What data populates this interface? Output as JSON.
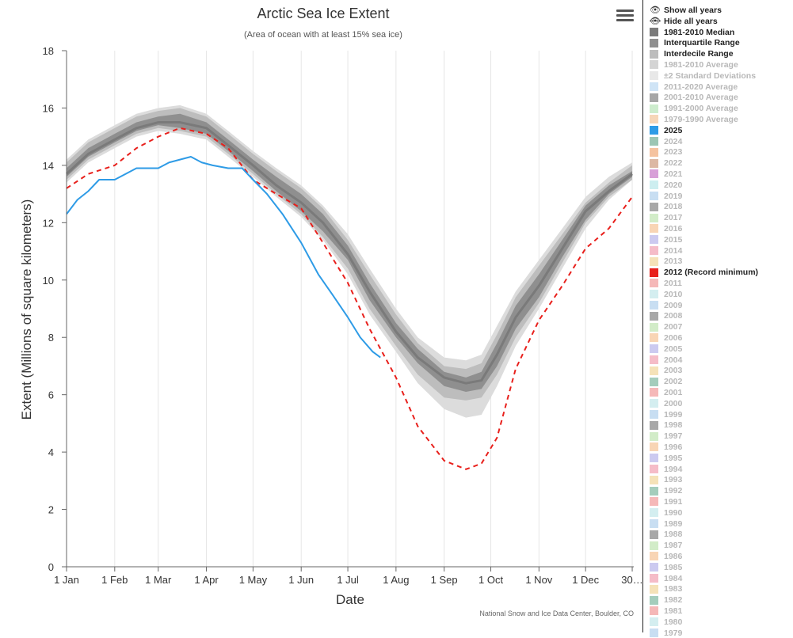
{
  "chart_data": {
    "type": "area",
    "title": "Arctic Sea Ice Extent",
    "subtitle": "(Area of ocean with at least 15% sea ice)",
    "xlabel": "Date",
    "ylabel": "Extent (Millions of square kilometers)",
    "ylim": [
      0,
      18
    ],
    "yticks": [
      0,
      2,
      4,
      6,
      8,
      10,
      12,
      14,
      16,
      18
    ],
    "xlim": [
      1,
      366
    ],
    "xtick_days": [
      1,
      32,
      60,
      91,
      121,
      152,
      182,
      213,
      244,
      274,
      305,
      335,
      365
    ],
    "xtick_labels": [
      "1 Jan",
      "1 Feb",
      "1 Mar",
      "1 Apr",
      "1 May",
      "1 Jun",
      "1 Jul",
      "1 Aug",
      "1 Sep",
      "1 Oct",
      "1 Nov",
      "1 Dec",
      "30…"
    ],
    "grid": "vertical",
    "credit": "National Snow and Ice Data Center, Boulder, CO",
    "x_unit": "day of year",
    "series": [
      {
        "name": "±2 Standard Deviations",
        "kind": "band",
        "color": "#dcdcdc",
        "x": [
          1,
          15,
          32,
          46,
          60,
          74,
          91,
          105,
          121,
          136,
          152,
          166,
          182,
          196,
          213,
          227,
          244,
          258,
          268,
          278,
          290,
          305,
          320,
          335,
          350,
          365
        ],
        "lower": [
          13.4,
          14.1,
          14.6,
          15.0,
          15.2,
          15.1,
          14.9,
          14.3,
          13.6,
          12.9,
          12.2,
          11.4,
          10.2,
          8.8,
          7.5,
          6.4,
          5.5,
          5.2,
          5.3,
          6.3,
          7.7,
          9.0,
          10.4,
          11.8,
          12.8,
          13.5
        ],
        "upper": [
          14.2,
          14.9,
          15.4,
          15.8,
          16.0,
          16.1,
          15.8,
          15.2,
          14.5,
          13.9,
          13.3,
          12.6,
          11.6,
          10.4,
          9.0,
          8.0,
          7.3,
          7.2,
          7.4,
          8.4,
          9.6,
          10.7,
          11.8,
          12.9,
          13.6,
          14.1
        ]
      },
      {
        "name": "Interdecile Range",
        "kind": "band",
        "color": "#bdbdbd",
        "x": [
          1,
          15,
          32,
          46,
          60,
          74,
          91,
          105,
          121,
          136,
          152,
          166,
          182,
          196,
          213,
          227,
          244,
          258,
          268,
          278,
          290,
          305,
          320,
          335,
          350,
          365
        ],
        "lower": [
          13.5,
          14.2,
          14.7,
          15.1,
          15.3,
          15.2,
          15.0,
          14.4,
          13.7,
          13.0,
          12.3,
          11.5,
          10.4,
          9.0,
          7.7,
          6.7,
          5.9,
          5.8,
          5.9,
          6.7,
          8.0,
          9.2,
          10.6,
          12.0,
          12.9,
          13.5
        ],
        "upper": [
          14.1,
          14.8,
          15.3,
          15.7,
          15.9,
          16.0,
          15.7,
          15.1,
          14.4,
          13.8,
          13.2,
          12.5,
          11.4,
          10.2,
          8.8,
          7.8,
          7.0,
          6.9,
          7.1,
          8.1,
          9.4,
          10.5,
          11.6,
          12.7,
          13.4,
          14.0
        ]
      },
      {
        "name": "Interquartile Range",
        "kind": "band",
        "color": "#8f8f8f",
        "x": [
          1,
          15,
          32,
          46,
          60,
          74,
          91,
          105,
          121,
          136,
          152,
          166,
          182,
          196,
          213,
          227,
          244,
          258,
          268,
          278,
          290,
          305,
          320,
          335,
          350,
          365
        ],
        "lower": [
          13.6,
          14.3,
          14.8,
          15.2,
          15.4,
          15.3,
          15.1,
          14.5,
          13.8,
          13.1,
          12.4,
          11.7,
          10.7,
          9.3,
          8.0,
          7.1,
          6.3,
          6.1,
          6.2,
          7.0,
          8.3,
          9.4,
          10.8,
          12.1,
          13.0,
          13.6
        ],
        "upper": [
          13.9,
          14.6,
          15.1,
          15.5,
          15.7,
          15.8,
          15.5,
          14.9,
          14.2,
          13.6,
          13.0,
          12.3,
          11.2,
          9.9,
          8.5,
          7.6,
          6.8,
          6.6,
          6.8,
          7.8,
          9.1,
          10.2,
          11.4,
          12.6,
          13.3,
          13.8
        ]
      },
      {
        "name": "1981-2010 Median",
        "kind": "line",
        "color": "#7a7a7a",
        "x": [
          1,
          15,
          32,
          46,
          60,
          74,
          91,
          105,
          121,
          136,
          152,
          166,
          182,
          196,
          213,
          227,
          244,
          258,
          268,
          278,
          290,
          305,
          320,
          335,
          350,
          365
        ],
        "values": [
          13.7,
          14.4,
          14.9,
          15.3,
          15.5,
          15.5,
          15.3,
          14.7,
          14.0,
          13.3,
          12.7,
          12.0,
          10.9,
          9.6,
          8.2,
          7.3,
          6.6,
          6.4,
          6.5,
          7.4,
          8.7,
          9.8,
          11.1,
          12.4,
          13.1,
          13.7
        ]
      },
      {
        "name": "2012 (Record minimum)",
        "kind": "dashed",
        "color": "#e8201c",
        "x": [
          1,
          15,
          32,
          46,
          60,
          74,
          91,
          105,
          121,
          136,
          152,
          166,
          182,
          196,
          213,
          227,
          244,
          258,
          268,
          278,
          290,
          305,
          320,
          335,
          350,
          365
        ],
        "values": [
          13.2,
          13.7,
          14.0,
          14.6,
          15.0,
          15.3,
          15.1,
          14.6,
          13.5,
          13.0,
          12.5,
          11.3,
          9.9,
          8.3,
          6.6,
          4.9,
          3.7,
          3.4,
          3.6,
          4.5,
          6.9,
          8.6,
          9.8,
          11.1,
          11.8,
          12.9
        ]
      },
      {
        "name": "2025",
        "kind": "line",
        "color": "#2e9be6",
        "x": [
          1,
          8,
          15,
          22,
          32,
          39,
          46,
          53,
          60,
          67,
          74,
          81,
          88,
          95,
          105,
          114,
          121,
          130,
          140,
          152,
          163,
          172,
          182,
          190,
          198,
          203
        ],
        "values": [
          12.3,
          12.8,
          13.1,
          13.5,
          13.5,
          13.7,
          13.9,
          13.9,
          13.9,
          14.1,
          14.2,
          14.3,
          14.1,
          14.0,
          13.9,
          13.9,
          13.5,
          13.0,
          12.3,
          11.3,
          10.2,
          9.5,
          8.7,
          8.0,
          7.5,
          7.3
        ]
      }
    ]
  },
  "menu_icon": "hamburger-icon",
  "legend": {
    "show_all": "Show all years",
    "show_all_icon": "eye-icon",
    "hide_all": "Hide all years",
    "hide_all_icon": "eye-slash-icon",
    "items": [
      {
        "label": "1981-2010 Median",
        "color": "#7a7a7a",
        "active": true
      },
      {
        "label": "Interquartile Range",
        "color": "#8f8f8f",
        "active": true
      },
      {
        "label": "Interdecile Range",
        "color": "#bdbdbd",
        "active": true
      },
      {
        "label": "1981-2010 Average",
        "color": "#d4d4d4",
        "active": false
      },
      {
        "label": "±2 Standard Deviations",
        "color": "#e8e8e8",
        "active": false
      },
      {
        "label": "2011-2020 Average",
        "color": "#cfe4f6",
        "active": false
      },
      {
        "label": "2001-2010 Average",
        "color": "#a6a6a6",
        "active": false
      },
      {
        "label": "1991-2000 Average",
        "color": "#cdeccd",
        "active": false
      },
      {
        "label": "1979-1990 Average",
        "color": "#f6d6b8",
        "active": false
      },
      {
        "label": "2025",
        "color": "#2e9be6",
        "active": true
      },
      {
        "label": "2024",
        "color": "#9cc6b4",
        "active": false
      },
      {
        "label": "2023",
        "color": "#f5c3a0",
        "active": false
      },
      {
        "label": "2022",
        "color": "#dcb8a4",
        "active": false
      },
      {
        "label": "2021",
        "color": "#d8a0d8",
        "active": false
      },
      {
        "label": "2020",
        "color": "#cdeef0",
        "active": false
      },
      {
        "label": "2019",
        "color": "#c8def2",
        "active": false
      },
      {
        "label": "2018",
        "color": "#a8a8a8",
        "active": false
      },
      {
        "label": "2017",
        "color": "#d2ecc8",
        "active": false
      },
      {
        "label": "2016",
        "color": "#f8d5b5",
        "active": false
      },
      {
        "label": "2015",
        "color": "#cccaf0",
        "active": false
      },
      {
        "label": "2014",
        "color": "#f5bcc8",
        "active": false
      },
      {
        "label": "2013",
        "color": "#f5e2b8",
        "active": false
      },
      {
        "label": "2012 (Record minimum)",
        "color": "#e8201c",
        "active": true
      },
      {
        "label": "2011",
        "color": "#f5b8b8",
        "active": false
      },
      {
        "label": "2010",
        "color": "#d4eef0",
        "active": false
      },
      {
        "label": "2009",
        "color": "#c8def2",
        "active": false
      },
      {
        "label": "2008",
        "color": "#a8a8a8",
        "active": false
      },
      {
        "label": "2007",
        "color": "#d2ecc8",
        "active": false
      },
      {
        "label": "2006",
        "color": "#f8d5b5",
        "active": false
      },
      {
        "label": "2005",
        "color": "#cccaf0",
        "active": false
      },
      {
        "label": "2004",
        "color": "#f5bcc8",
        "active": false
      },
      {
        "label": "2003",
        "color": "#f5e2b8",
        "active": false
      },
      {
        "label": "2002",
        "color": "#a4cdbc",
        "active": false
      },
      {
        "label": "2001",
        "color": "#f5b8b8",
        "active": false
      },
      {
        "label": "2000",
        "color": "#d4eef0",
        "active": false
      },
      {
        "label": "1999",
        "color": "#c8def2",
        "active": false
      },
      {
        "label": "1998",
        "color": "#a8a8a8",
        "active": false
      },
      {
        "label": "1997",
        "color": "#d2ecc8",
        "active": false
      },
      {
        "label": "1996",
        "color": "#f8d5b5",
        "active": false
      },
      {
        "label": "1995",
        "color": "#cccaf0",
        "active": false
      },
      {
        "label": "1994",
        "color": "#f5bcc8",
        "active": false
      },
      {
        "label": "1993",
        "color": "#f5e2b8",
        "active": false
      },
      {
        "label": "1992",
        "color": "#a4cdbc",
        "active": false
      },
      {
        "label": "1991",
        "color": "#f5b8b8",
        "active": false
      },
      {
        "label": "1990",
        "color": "#d4eef0",
        "active": false
      },
      {
        "label": "1989",
        "color": "#c8def2",
        "active": false
      },
      {
        "label": "1988",
        "color": "#a8a8a8",
        "active": false
      },
      {
        "label": "1987",
        "color": "#d2ecc8",
        "active": false
      },
      {
        "label": "1986",
        "color": "#f8d5b5",
        "active": false
      },
      {
        "label": "1985",
        "color": "#cccaf0",
        "active": false
      },
      {
        "label": "1984",
        "color": "#f5bcc8",
        "active": false
      },
      {
        "label": "1983",
        "color": "#f5e2b8",
        "active": false
      },
      {
        "label": "1982",
        "color": "#a4cdbc",
        "active": false
      },
      {
        "label": "1981",
        "color": "#f5b8b8",
        "active": false
      },
      {
        "label": "1980",
        "color": "#d4eef0",
        "active": false
      },
      {
        "label": "1979",
        "color": "#c8def2",
        "active": false
      }
    ]
  }
}
